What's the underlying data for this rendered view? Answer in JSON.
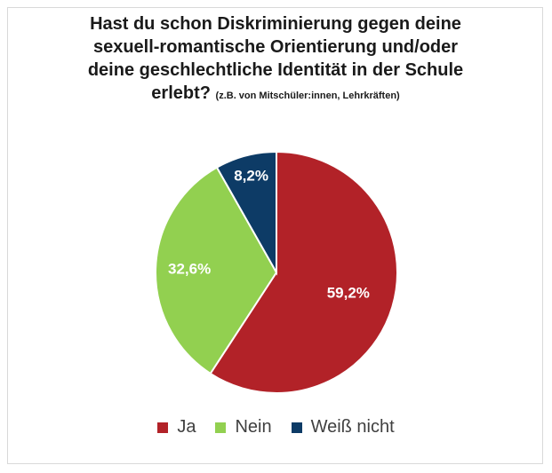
{
  "chart_data": {
    "type": "pie",
    "title": "Hast du schon Diskriminierung gegen deine sexuell-romantische Orientierung und/oder deine geschlechtliche Identität in der Schule erlebt?",
    "subtitle": "(z.B. von Mitschüler:innen, Lehrkräften)",
    "title_lines": [
      "Hast du schon Diskriminierung gegen deine",
      "sexuell-romantische Orientierung und/oder",
      "deine geschlechtliche Identität in der Schule",
      "erlebt?"
    ],
    "categories": [
      "Ja",
      "Nein",
      "Weiß nicht"
    ],
    "values": [
      59.2,
      32.6,
      8.2
    ],
    "labels": [
      "59,2%",
      "32,6%",
      "8,2%"
    ],
    "colors": [
      "#b22228",
      "#92d050",
      "#0d3b66"
    ],
    "legend_position": "bottom"
  }
}
